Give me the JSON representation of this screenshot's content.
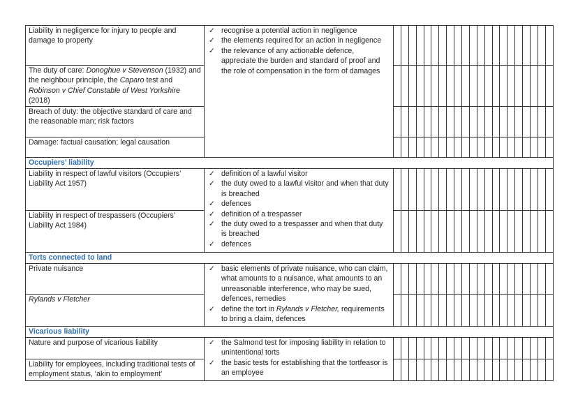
{
  "grid_columns": 21,
  "colors": {
    "section_heading": "#2f6eae",
    "border": "#333333"
  },
  "tick_icon": "check-mark-icon",
  "blocks": [
    {
      "topics": [
        {
          "parts": [
            {
              "t": "Liability in negligence for injury to people and damage to property"
            }
          ]
        },
        {
          "parts": [
            {
              "t": "The duty of care: "
            },
            {
              "t": "Donoghue v Stevenson",
              "i": true
            },
            {
              "t": " (1932) and the neighbour principle, the "
            },
            {
              "t": "Caparo",
              "i": true
            },
            {
              "t": " test and "
            },
            {
              "t": "Robinson v Chief Constable of West Yorkshire",
              "i": true
            },
            {
              "t": " (2018)"
            }
          ]
        },
        {
          "parts": [
            {
              "t": "Breach of duty: the objective standard of care and the reasonable man; risk factors"
            }
          ]
        },
        {
          "parts": [
            {
              "t": "Damage: factual causation; legal causation"
            }
          ]
        }
      ],
      "outcomes": [
        {
          "parts": [
            {
              "t": "recognise a potential action in negligence"
            }
          ]
        },
        {
          "parts": [
            {
              "t": "the elements required for an action in negligence"
            }
          ]
        },
        {
          "parts": [
            {
              "t": "the relevance of any actionable defence, appreciate the burden and standard of proof and the role of compensation in the form of damages"
            }
          ]
        }
      ]
    },
    {
      "section": "Occupiers’ liability",
      "topics": [
        {
          "parts": [
            {
              "t": "Liability in respect of lawful visitors (Occupiers’ Liability Act 1957)"
            }
          ]
        },
        {
          "parts": [
            {
              "t": "Liability in respect of trespassers (Occupiers’ Liability Act 1984)"
            }
          ]
        }
      ],
      "outcomes": [
        {
          "parts": [
            {
              "t": "definition of a lawful visitor"
            }
          ]
        },
        {
          "parts": [
            {
              "t": "the duty owed to a lawful visitor and when that duty is breached"
            }
          ]
        },
        {
          "parts": [
            {
              "t": "defences"
            }
          ]
        },
        {
          "parts": [
            {
              "t": "definition of a trespasser"
            }
          ]
        },
        {
          "parts": [
            {
              "t": "the duty owed to a trespasser and when that duty is breached"
            }
          ]
        },
        {
          "parts": [
            {
              "t": "defences"
            }
          ]
        }
      ]
    },
    {
      "section": "Torts connected to land",
      "topics": [
        {
          "parts": [
            {
              "t": "Private nuisance"
            }
          ]
        },
        {
          "parts": [
            {
              "t": "Rylands v Fletcher",
              "i": true
            }
          ]
        }
      ],
      "outcomes": [
        {
          "parts": [
            {
              "t": "basic elements of private nuisance, who can claim, what amounts to a nuisance, what amounts to an unreasonable interference, who may be sued, defences, remedies"
            }
          ]
        },
        {
          "parts": [
            {
              "t": "define the tort in "
            },
            {
              "t": "Rylands v Fletcher,",
              "i": true
            },
            {
              "t": " requirements to bring a claim, defences"
            }
          ]
        }
      ]
    },
    {
      "section": "Vicarious liability",
      "topics": [
        {
          "parts": [
            {
              "t": "Nature and purpose of vicarious liability"
            }
          ]
        },
        {
          "parts": [
            {
              "t": "Liability for employees, including traditional tests of employment status, ‘akin to employment’"
            }
          ]
        }
      ],
      "outcomes": [
        {
          "parts": [
            {
              "t": "the Salmond test for imposing liability in relation to unintentional torts"
            }
          ]
        },
        {
          "parts": [
            {
              "t": "the basic tests for establishing that the tortfeasor is an employee"
            }
          ]
        }
      ]
    }
  ]
}
